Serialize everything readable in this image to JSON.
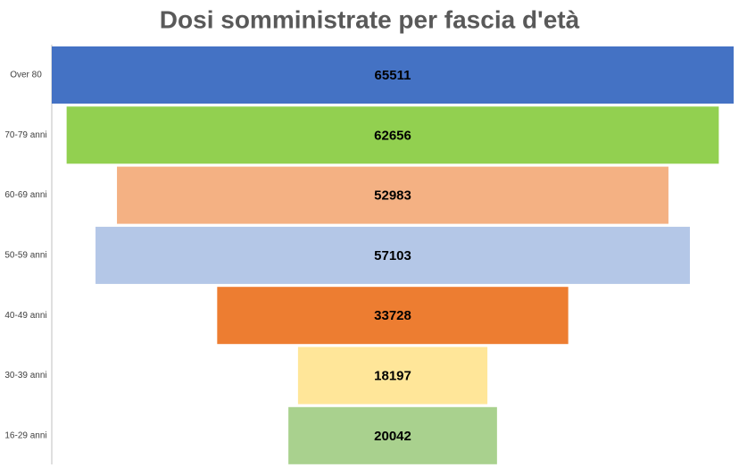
{
  "chart_data": {
    "type": "funnel",
    "title": "Dosi somministrate per fascia d'età",
    "categories": [
      "Over 80",
      "70-79 anni",
      "60-69 anni",
      "50-59 anni",
      "40-49 anni",
      "30-39 anni",
      "16-29 anni"
    ],
    "values": [
      65511,
      62656,
      52983,
      57103,
      33728,
      18197,
      20042
    ],
    "colors": [
      "#4472c4",
      "#92d050",
      "#f4b183",
      "#b4c7e7",
      "#ed7d31",
      "#ffe699",
      "#a9d18e"
    ]
  }
}
